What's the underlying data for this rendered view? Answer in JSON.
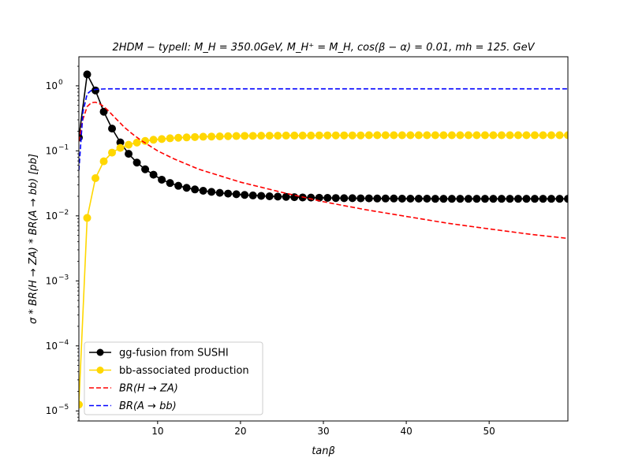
{
  "chart_data": {
    "type": "line",
    "title": "2HDM − typeII: M_H = 350.0GeV, M_H⁺ = M_H, cos(β − α) = 0.01, mh = 125. GeV",
    "xlabel": "tanβ",
    "ylabel": "σ * BR(H → ZA) * BR(A → bb) [pb]",
    "xlim": [
      0.5,
      59.5
    ],
    "ylim": [
      7e-06,
      2.8
    ],
    "yscale": "log",
    "x_ticks": [
      10,
      20,
      30,
      40,
      50
    ],
    "x_tick_labels": [
      "10",
      "20",
      "30",
      "40",
      "50"
    ],
    "y_ticks": [
      1e-05,
      0.0001,
      0.001,
      0.01,
      0.1,
      1
    ],
    "y_tick_labels": [
      {
        "base": "10",
        "exp": "−5"
      },
      {
        "base": "10",
        "exp": "−4"
      },
      {
        "base": "10",
        "exp": "−3"
      },
      {
        "base": "10",
        "exp": "−2"
      },
      {
        "base": "10",
        "exp": "−1"
      },
      {
        "base": "10",
        "exp": "0"
      }
    ],
    "grid": false,
    "legend_position": "lower-left",
    "series": [
      {
        "name": "gg-fusion from SUSHI",
        "color": "#000000",
        "style": "solid-marker",
        "x": [
          0.5,
          1.5,
          2.5,
          3.5,
          4.5,
          5.5,
          6.5,
          7.5,
          8.5,
          9.5,
          10.5,
          11.5,
          12.5,
          13.5,
          14.5,
          15.5,
          16.5,
          17.5,
          18.5,
          19.5,
          20.5,
          21.5,
          22.5,
          23.5,
          24.5,
          25.5,
          26.5,
          27.5,
          28.5,
          29.5,
          30.5,
          31.5,
          32.5,
          33.5,
          34.5,
          35.5,
          36.5,
          37.5,
          38.5,
          39.5,
          40.5,
          41.5,
          42.5,
          43.5,
          44.5,
          45.5,
          46.5,
          47.5,
          48.5,
          49.5,
          50.5,
          51.5,
          52.5,
          53.5,
          54.5,
          55.5,
          56.5,
          57.5,
          58.5,
          59.5
        ],
        "y": [
          0.16,
          1.5,
          0.85,
          0.4,
          0.22,
          0.135,
          0.09,
          0.066,
          0.052,
          0.043,
          0.036,
          0.032,
          0.029,
          0.027,
          0.0255,
          0.0243,
          0.0234,
          0.0226,
          0.022,
          0.0215,
          0.021,
          0.0206,
          0.0203,
          0.02,
          0.0198,
          0.0196,
          0.0194,
          0.0192,
          0.0191,
          0.019,
          0.0189,
          0.0188,
          0.0187,
          0.0187,
          0.0186,
          0.0186,
          0.0185,
          0.0185,
          0.0185,
          0.0184,
          0.0184,
          0.0184,
          0.0184,
          0.0183,
          0.0183,
          0.0183,
          0.0183,
          0.0183,
          0.0183,
          0.0183,
          0.0183,
          0.0183,
          0.0183,
          0.0183,
          0.0183,
          0.0183,
          0.0183,
          0.0183,
          0.0183,
          0.0183
        ]
      },
      {
        "name": "bb-associated production",
        "color": "#FFD700",
        "style": "solid-marker",
        "x": [
          0.5,
          1.5,
          2.5,
          3.5,
          4.5,
          5.5,
          6.5,
          7.5,
          8.5,
          9.5,
          10.5,
          11.5,
          12.5,
          13.5,
          14.5,
          15.5,
          16.5,
          17.5,
          18.5,
          19.5,
          20.5,
          21.5,
          22.5,
          23.5,
          24.5,
          25.5,
          26.5,
          27.5,
          28.5,
          29.5,
          30.5,
          31.5,
          32.5,
          33.5,
          34.5,
          35.5,
          36.5,
          37.5,
          38.5,
          39.5,
          40.5,
          41.5,
          42.5,
          43.5,
          44.5,
          45.5,
          46.5,
          47.5,
          48.5,
          49.5,
          50.5,
          51.5,
          52.5,
          53.5,
          54.5,
          55.5,
          56.5,
          57.5,
          58.5,
          59.5
        ],
        "y": [
          1.25e-05,
          0.0093,
          0.038,
          0.069,
          0.094,
          0.111,
          0.124,
          0.134,
          0.142,
          0.148,
          0.152,
          0.156,
          0.159,
          0.161,
          0.163,
          0.165,
          0.166,
          0.167,
          0.168,
          0.169,
          0.17,
          0.17,
          0.171,
          0.171,
          0.171,
          0.172,
          0.172,
          0.172,
          0.172,
          0.173,
          0.173,
          0.173,
          0.173,
          0.173,
          0.173,
          0.174,
          0.174,
          0.174,
          0.174,
          0.174,
          0.174,
          0.174,
          0.174,
          0.174,
          0.174,
          0.174,
          0.174,
          0.174,
          0.174,
          0.174,
          0.174,
          0.174,
          0.174,
          0.174,
          0.174,
          0.174,
          0.174,
          0.174,
          0.174,
          0.174
        ]
      },
      {
        "name": "BR(H → ZA)",
        "color": "#FF0000",
        "style": "dashed",
        "x": [
          0.5,
          1.0,
          1.5,
          2.0,
          2.5,
          3.0,
          3.5,
          4.0,
          5.0,
          6.0,
          7.0,
          8.0,
          10.0,
          12.0,
          15.0,
          20.0,
          25.0,
          30.0,
          35.0,
          40.0,
          45.0,
          50.0,
          55.0,
          59.5
        ],
        "y": [
          0.14,
          0.31,
          0.48,
          0.55,
          0.56,
          0.53,
          0.48,
          0.42,
          0.31,
          0.23,
          0.18,
          0.145,
          0.1,
          0.075,
          0.052,
          0.033,
          0.023,
          0.0165,
          0.0125,
          0.0098,
          0.0077,
          0.0063,
          0.0052,
          0.0045
        ]
      },
      {
        "name": "BR(A → bb)",
        "color": "#0000FF",
        "style": "dashed",
        "x": [
          0.5,
          1.0,
          1.5,
          2.0,
          2.5,
          3.0,
          4.0,
          10.0,
          20.0,
          30.0,
          40.0,
          50.0,
          59.5
        ],
        "y": [
          0.05,
          0.4,
          0.75,
          0.85,
          0.88,
          0.89,
          0.9,
          0.9,
          0.9,
          0.9,
          0.9,
          0.9,
          0.9
        ]
      }
    ]
  }
}
